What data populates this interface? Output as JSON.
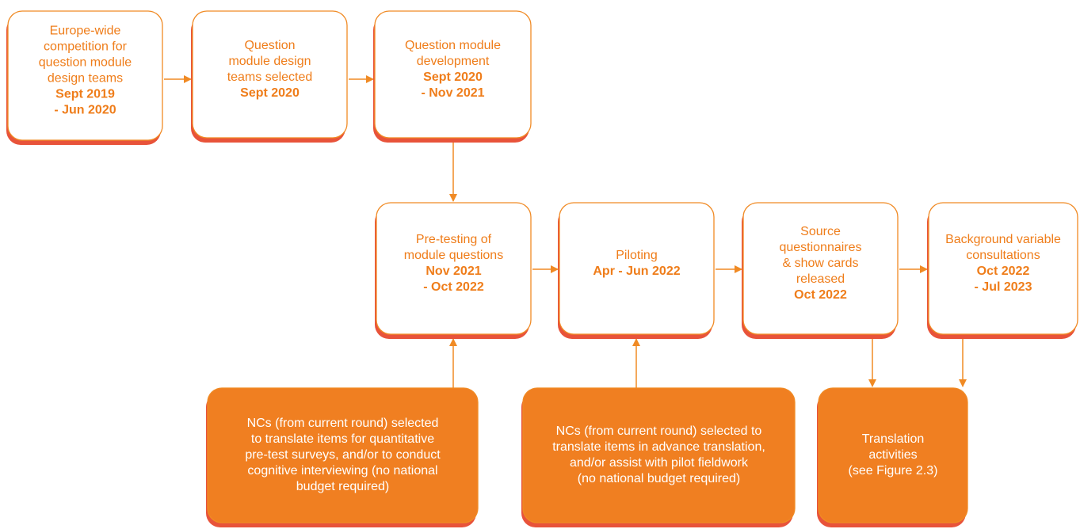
{
  "nodes": [
    {
      "lines": [
        "Europe-wide",
        "competition for",
        "question module",
        "design teams"
      ],
      "date": [
        "Sept 2019",
        "- Jun 2020"
      ]
    },
    {
      "lines": [
        "Question",
        "module design",
        "teams selected"
      ],
      "date": [
        "Sept 2020"
      ]
    },
    {
      "lines": [
        "Question module",
        "development"
      ],
      "date": [
        "Sept 2020",
        "- Nov 2021"
      ]
    },
    {
      "lines": [
        "Pre-testing of",
        "module questions"
      ],
      "date": [
        "Nov 2021",
        "- Oct 2022"
      ]
    },
    {
      "lines": [
        "Piloting"
      ],
      "date": [
        "Apr - Jun 2022"
      ]
    },
    {
      "lines": [
        "Source",
        "questionnaires",
        "& show cards",
        "released"
      ],
      "date": [
        "Oct 2022"
      ]
    },
    {
      "lines": [
        "Background variable",
        "consultations"
      ],
      "date": [
        "Oct 2022",
        "- Jul 2023"
      ]
    },
    {
      "lines": [
        "NCs (from current round) selected",
        "to translate items for quantitative",
        "pre-test surveys, and/or to conduct",
        "cognitive interviewing (no national",
        "budget required)"
      ],
      "date": []
    },
    {
      "lines": [
        "NCs (from current round) selected to",
        "translate items in advance translation,",
        "and/or assist with pilot fieldwork",
        "(no national budget required)"
      ],
      "date": []
    },
    {
      "lines": [
        "Translation",
        "activities",
        "(see Figure 2.3)"
      ],
      "date": []
    }
  ]
}
